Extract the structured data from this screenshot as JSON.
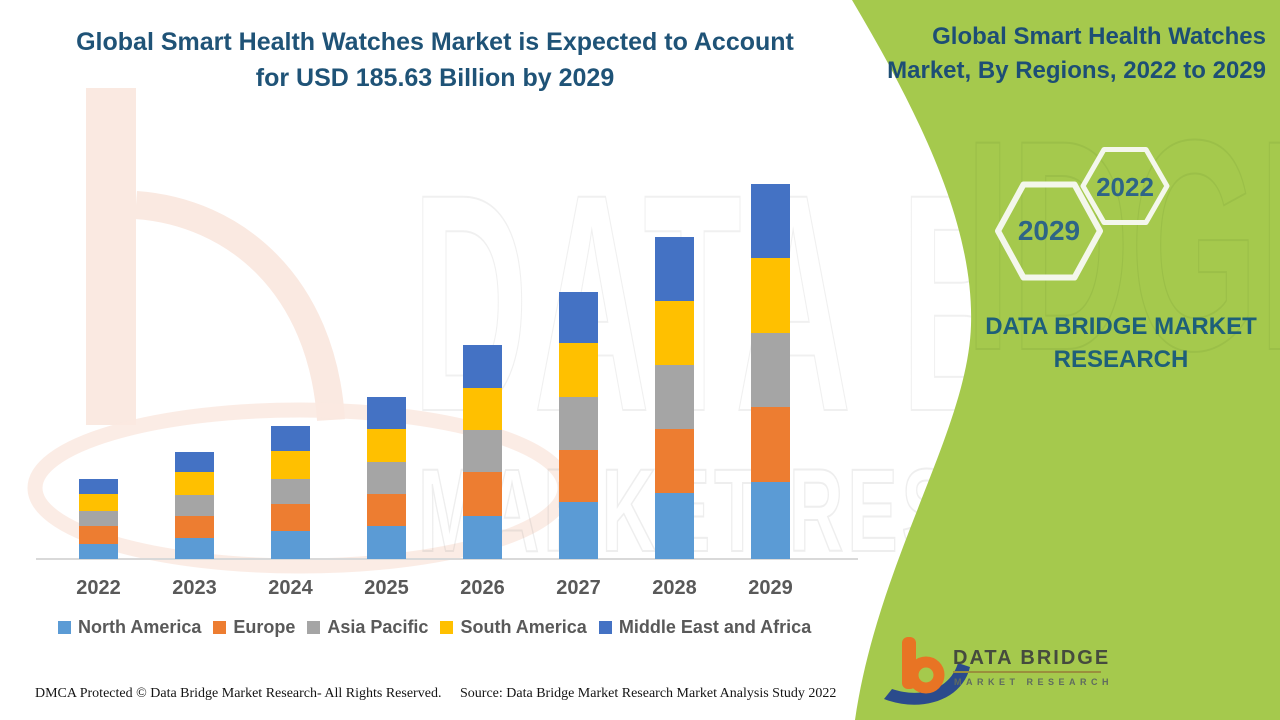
{
  "page": {
    "title_left": {
      "line1": "Global Smart Health Watches Market is Expected to Account",
      "line2": "for USD 185.63 Billion by 2029"
    },
    "panel": {
      "title_line1": "Global Smart Health Watches",
      "title_line2": "Market, By Regions, 2022 to 2029",
      "hexagon_top_label": "2022",
      "hexagon_bottom_label": "2029",
      "brand_line1": "DATA BRIDGE MARKET",
      "brand_line2": "RESEARCH",
      "panel_color": "#A5C94D",
      "title_color": "#1D4E75"
    },
    "logo": {
      "name": "DATA BRIDGE",
      "subtitle": "MARKET RESEARCH"
    },
    "footer": {
      "left": "DMCA Protected © Data Bridge Market Research- All Rights Reserved.",
      "right": "Source: Data Bridge Market Research Market Analysis Study 2022"
    },
    "watermark": {
      "big_text": "DATA B",
      "mid_text": "MARKET RESEARCH",
      "panel_text": "IDGE"
    }
  },
  "chart_data": {
    "type": "bar",
    "stacked": true,
    "title": "Global Smart Health Watches Market is Expected to Account for USD 185.63 Billion by 2029",
    "unit": "USD Billion",
    "categories": [
      "2022",
      "2023",
      "2024",
      "2025",
      "2026",
      "2027",
      "2028",
      "2029"
    ],
    "series": [
      {
        "name": "North America",
        "color": "#5B9BD5",
        "values": [
          7.4,
          10.5,
          13.9,
          16.3,
          21.4,
          28.1,
          32.5,
          38.2
        ]
      },
      {
        "name": "Europe",
        "color": "#ED7D31",
        "values": [
          9.1,
          10.7,
          13.2,
          15.7,
          21.8,
          25.9,
          31.8,
          36.9
        ]
      },
      {
        "name": "Asia Pacific",
        "color": "#A5A5A5",
        "values": [
          7.4,
          10.7,
          12.5,
          16.2,
          20.6,
          26.1,
          31.7,
          37.0
        ]
      },
      {
        "name": "South America",
        "color": "#FFC000",
        "values": [
          8.1,
          11.0,
          13.9,
          16.0,
          20.6,
          26.6,
          31.8,
          36.8
        ]
      },
      {
        "name": "Middle East and Africa",
        "color": "#4472C4",
        "values": [
          7.6,
          9.9,
          12.5,
          15.8,
          21.6,
          25.4,
          31.7,
          36.7
        ]
      }
    ],
    "totals": [
      39.6,
      52.8,
      66.0,
      80.0,
      106.0,
      132.1,
      159.5,
      185.63
    ],
    "highlight_total": {
      "year": "2029",
      "value": 185.63
    },
    "ylim": [
      0,
      190
    ],
    "gridlines": false,
    "value_labels": false,
    "legend_position": "bottom"
  }
}
